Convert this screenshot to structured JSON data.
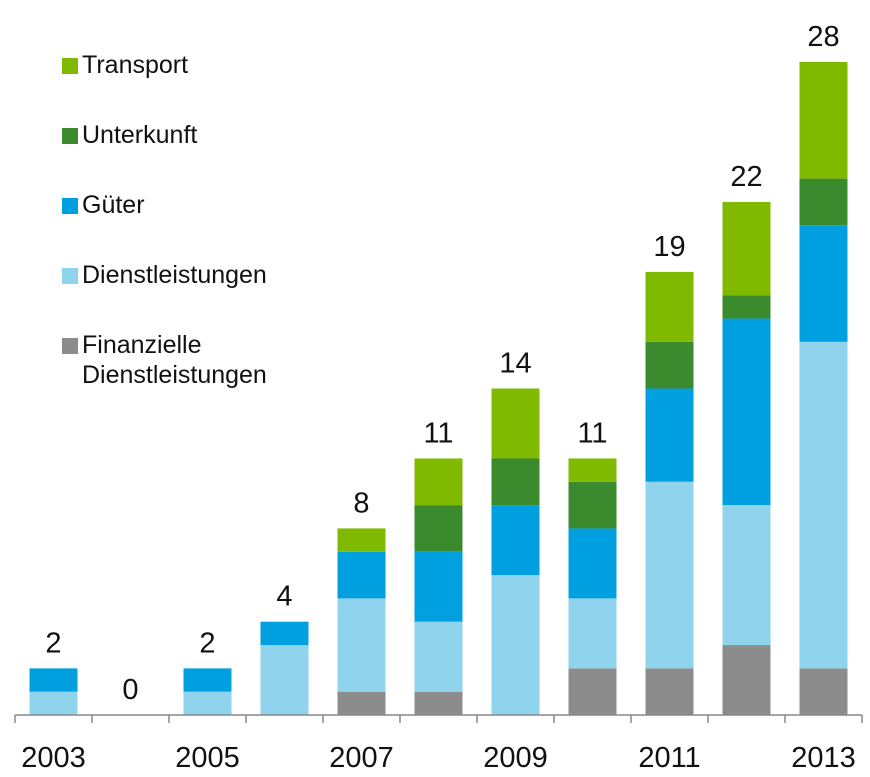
{
  "chart_data": {
    "type": "stacked_bar",
    "categories": [
      "2003",
      null,
      "2005",
      null,
      "2007",
      null,
      "2009",
      null,
      "2011",
      null,
      "2013"
    ],
    "series": [
      {
        "name": "Transport",
        "color": "#7fba00",
        "values": [
          0,
          0,
          0,
          0,
          1,
          2,
          3,
          1,
          3,
          4,
          5
        ]
      },
      {
        "name": "Unterkunft",
        "color": "#3b8a2e",
        "values": [
          0,
          0,
          0,
          0,
          0,
          2,
          2,
          2,
          2,
          1,
          2
        ]
      },
      {
        "name": "Güter",
        "color": "#00a0e0",
        "values": [
          1,
          0,
          1,
          1,
          2,
          3,
          3,
          3,
          4,
          8,
          5
        ]
      },
      {
        "name": "Dienstleistungen",
        "color": "#8fd3ec",
        "values": [
          1,
          0,
          1,
          3,
          4,
          3,
          6,
          3,
          8,
          6,
          14
        ]
      },
      {
        "name": "Finanzielle Dienstleistungen",
        "color": "#8c8c8c",
        "values": [
          0,
          0,
          0,
          0,
          1,
          1,
          0,
          2,
          2,
          3,
          2
        ]
      }
    ],
    "totals": [
      2,
      0,
      2,
      4,
      8,
      11,
      14,
      11,
      19,
      22,
      28
    ],
    "ylim": [
      0,
      28
    ]
  }
}
